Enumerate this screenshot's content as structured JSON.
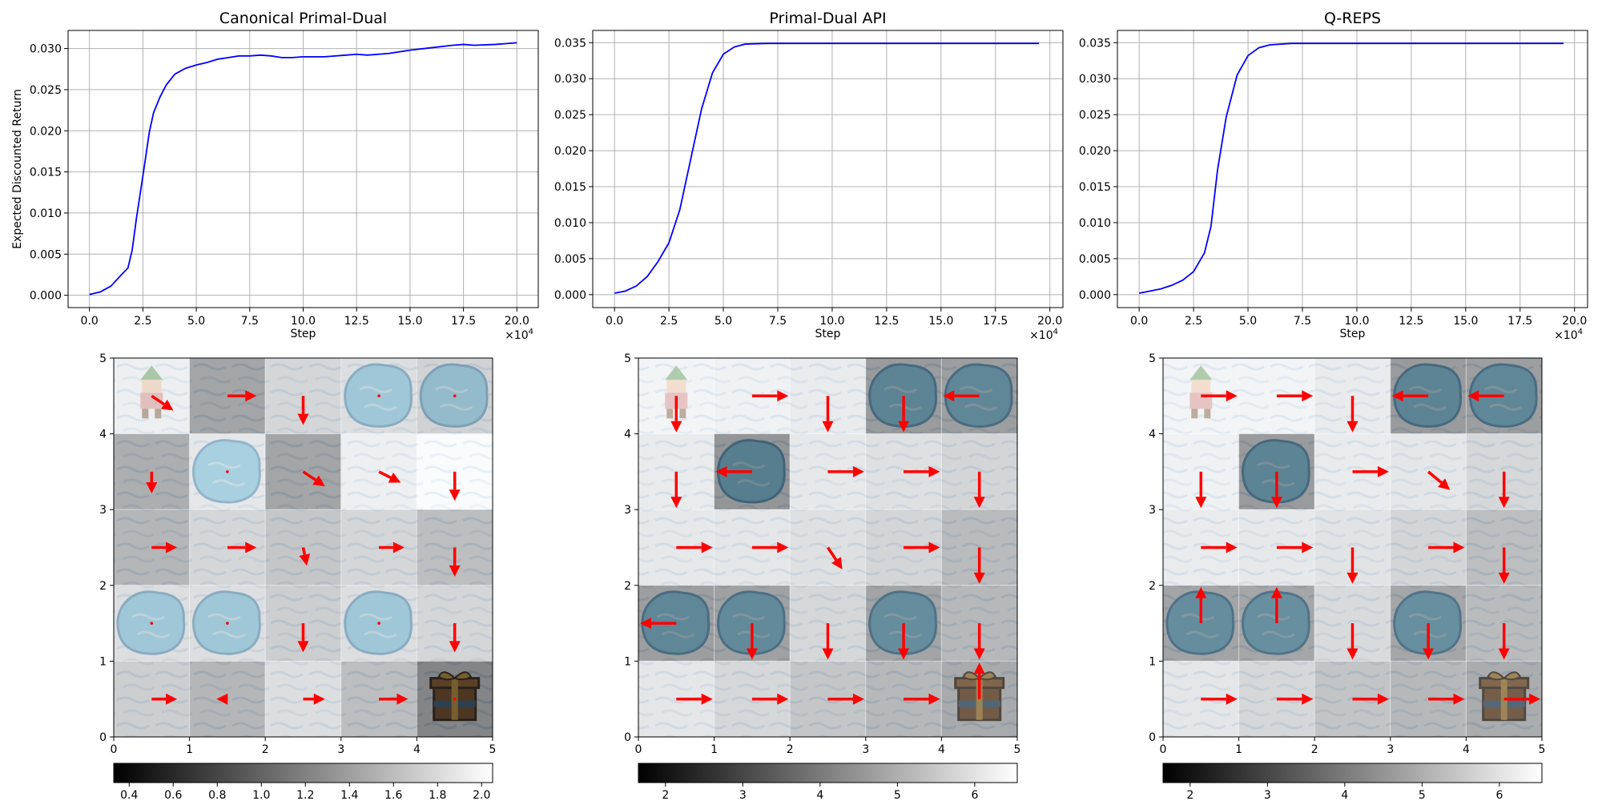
{
  "chart_data": [
    {
      "type": "line",
      "title": "Canonical Primal-Dual",
      "xlabel": "Step",
      "ylabel": "Expected Discounted Return",
      "x_multiplier": "×10",
      "x_multiplier_exp": "4",
      "xlim": [
        -1.0,
        21.0
      ],
      "ylim": [
        -0.0015,
        0.0322
      ],
      "xticks": [
        0.0,
        2.5,
        5.0,
        7.5,
        10.0,
        12.5,
        15.0,
        17.5,
        20.0
      ],
      "xtick_labels": [
        "0.0",
        "2.5",
        "5.0",
        "7.5",
        "10.0",
        "12.5",
        "15.0",
        "17.5",
        "20.0"
      ],
      "yticks": [
        0.0,
        0.005,
        0.01,
        0.015,
        0.02,
        0.025,
        0.03
      ],
      "ytick_labels": [
        "0.000",
        "0.005",
        "0.010",
        "0.015",
        "0.020",
        "0.025",
        "0.030"
      ],
      "grid": true,
      "color": "#0000ff",
      "x": [
        0,
        0.5,
        1.0,
        1.5,
        1.8,
        2.0,
        2.2,
        2.5,
        2.8,
        3.0,
        3.3,
        3.6,
        4.0,
        4.5,
        5.0,
        5.5,
        6.0,
        6.5,
        7.0,
        7.5,
        8.0,
        8.5,
        9.0,
        9.5,
        10.0,
        11.0,
        12.0,
        12.5,
        13.0,
        14.0,
        15.0,
        16.0,
        17.0,
        17.5,
        18.0,
        19.0,
        20.0
      ],
      "y": [
        0.0001,
        0.0004,
        0.0011,
        0.0025,
        0.0033,
        0.0055,
        0.0094,
        0.0145,
        0.0198,
        0.0222,
        0.0241,
        0.0256,
        0.0269,
        0.0276,
        0.028,
        0.0283,
        0.0287,
        0.0289,
        0.0291,
        0.0291,
        0.0292,
        0.0291,
        0.0289,
        0.0289,
        0.029,
        0.029,
        0.0292,
        0.0293,
        0.0292,
        0.0294,
        0.0298,
        0.0301,
        0.0304,
        0.0305,
        0.0304,
        0.0305,
        0.0307
      ]
    },
    {
      "type": "line",
      "title": "Primal-Dual API",
      "xlabel": "Step",
      "ylabel": "",
      "x_multiplier": "×10",
      "x_multiplier_exp": "4",
      "xlim": [
        -1.0,
        20.6
      ],
      "ylim": [
        -0.0018,
        0.0367
      ],
      "xticks": [
        0.0,
        2.5,
        5.0,
        7.5,
        10.0,
        12.5,
        15.0,
        17.5,
        20.0
      ],
      "xtick_labels": [
        "0.0",
        "2.5",
        "5.0",
        "7.5",
        "10.0",
        "12.5",
        "15.0",
        "17.5",
        "20.0"
      ],
      "yticks": [
        0.0,
        0.005,
        0.01,
        0.015,
        0.02,
        0.025,
        0.03,
        0.035
      ],
      "ytick_labels": [
        "0.000",
        "0.005",
        "0.010",
        "0.015",
        "0.020",
        "0.025",
        "0.030",
        "0.035"
      ],
      "grid": true,
      "color": "#0000ff",
      "x": [
        0,
        0.5,
        1.0,
        1.5,
        2.0,
        2.5,
        3.0,
        3.5,
        4.0,
        4.5,
        5.0,
        5.5,
        6.0,
        7.0,
        8.0,
        10.0,
        12.0,
        15.0,
        19.5
      ],
      "y": [
        0.0002,
        0.0005,
        0.0012,
        0.0025,
        0.0046,
        0.0072,
        0.0118,
        0.0188,
        0.0258,
        0.0308,
        0.0334,
        0.0344,
        0.0348,
        0.0349,
        0.0349,
        0.0349,
        0.0349,
        0.0349,
        0.0349
      ]
    },
    {
      "type": "line",
      "title": "Q-REPS",
      "xlabel": "Step",
      "ylabel": "",
      "x_multiplier": "×10",
      "x_multiplier_exp": "4",
      "xlim": [
        -1.0,
        20.6
      ],
      "ylim": [
        -0.0018,
        0.0367
      ],
      "xticks": [
        0.0,
        2.5,
        5.0,
        7.5,
        10.0,
        12.5,
        15.0,
        17.5,
        20.0
      ],
      "xtick_labels": [
        "0.0",
        "2.5",
        "5.0",
        "7.5",
        "10.0",
        "12.5",
        "15.0",
        "17.5",
        "20.0"
      ],
      "yticks": [
        0.0,
        0.005,
        0.01,
        0.015,
        0.02,
        0.025,
        0.03,
        0.035
      ],
      "ytick_labels": [
        "0.000",
        "0.005",
        "0.010",
        "0.015",
        "0.020",
        "0.025",
        "0.030",
        "0.035"
      ],
      "grid": true,
      "color": "#0000ff",
      "x": [
        0,
        0.5,
        1.0,
        1.5,
        2.0,
        2.5,
        3.0,
        3.3,
        3.6,
        4.0,
        4.5,
        5.0,
        5.5,
        6.0,
        7.0,
        8.0,
        10.0,
        12.0,
        15.0,
        19.5
      ],
      "y": [
        0.0002,
        0.0005,
        0.0008,
        0.0013,
        0.002,
        0.0032,
        0.0058,
        0.0095,
        0.0173,
        0.0247,
        0.0305,
        0.0332,
        0.0343,
        0.0347,
        0.0349,
        0.0349,
        0.0349,
        0.0349,
        0.0349,
        0.0349
      ]
    },
    {
      "type": "heatmap",
      "title": "",
      "grid_size": 5,
      "xlim": [
        0,
        5
      ],
      "ylim": [
        0,
        5
      ],
      "ticks": [
        "0",
        "1",
        "2",
        "3",
        "4",
        "5"
      ],
      "colorscale": "gray",
      "colorbar_range": [
        0.33,
        2.05
      ],
      "colorbar_ticks": [
        0.4,
        0.6,
        0.8,
        1.0,
        1.2,
        1.4,
        1.6,
        1.8,
        2.0
      ],
      "colorbar_tick_labels": [
        "0.4",
        "0.6",
        "0.8",
        "1.0",
        "1.2",
        "1.4",
        "1.6",
        "1.8",
        "2.0"
      ],
      "values": [
        [
          1.9,
          1.0,
          1.6,
          1.7,
          1.55
        ],
        [
          1.1,
          1.8,
          1.0,
          1.9,
          2.05
        ],
        [
          1.2,
          1.6,
          1.4,
          1.6,
          1.3
        ],
        [
          1.7,
          1.7,
          1.5,
          1.7,
          1.6
        ],
        [
          1.5,
          1.2,
          1.7,
          1.3,
          0.6
        ]
      ],
      "cell_types": [
        [
          "start",
          "ice",
          "ice",
          "hole",
          "hole"
        ],
        [
          "ice",
          "hole",
          "ice",
          "ice",
          "ice"
        ],
        [
          "ice",
          "ice",
          "ice",
          "ice",
          "ice"
        ],
        [
          "hole",
          "hole",
          "ice",
          "hole",
          "ice"
        ],
        [
          "ice",
          "ice",
          "ice",
          "ice",
          "goal"
        ]
      ],
      "arrows": [
        [
          [
            0.6,
            -0.4
          ],
          [
            0.8,
            0
          ],
          [
            0,
            -0.8
          ],
          [
            0,
            0
          ],
          [
            0,
            0
          ]
        ],
        [
          [
            0,
            -0.6
          ],
          [
            0,
            0
          ],
          [
            0.6,
            -0.4
          ],
          [
            0.6,
            -0.3
          ],
          [
            0,
            -0.8
          ]
        ],
        [
          [
            0.7,
            0
          ],
          [
            0.8,
            0
          ],
          [
            0.1,
            -0.5
          ],
          [
            0.7,
            0
          ],
          [
            0,
            -0.8
          ]
        ],
        [
          [
            0,
            0
          ],
          [
            0,
            0
          ],
          [
            0,
            -0.8
          ],
          [
            0,
            0
          ],
          [
            0,
            -0.8
          ]
        ],
        [
          [
            0.7,
            0
          ],
          [
            -0.3,
            0
          ],
          [
            0.6,
            0
          ],
          [
            0.8,
            0
          ],
          [
            0,
            0
          ]
        ]
      ]
    },
    {
      "type": "heatmap",
      "title": "",
      "grid_size": 5,
      "xlim": [
        0,
        5
      ],
      "ylim": [
        0,
        5
      ],
      "ticks": [
        "0",
        "1",
        "2",
        "3",
        "4",
        "5"
      ],
      "colorscale": "gray",
      "colorbar_range": [
        1.65,
        6.55
      ],
      "colorbar_ticks": [
        2,
        3,
        4,
        5,
        6
      ],
      "colorbar_tick_labels": [
        "2",
        "3",
        "4",
        "5",
        "6"
      ],
      "values": [
        [
          6.3,
          6.2,
          6.0,
          3.2,
          3.3
        ],
        [
          6.0,
          3.0,
          5.9,
          5.6,
          5.2
        ],
        [
          5.9,
          5.8,
          5.6,
          5.2,
          4.3
        ],
        [
          3.3,
          3.4,
          5.3,
          3.5,
          4.2
        ],
        [
          5.8,
          5.3,
          4.7,
          4.2,
          3.7
        ]
      ],
      "cell_types": [
        [
          "start",
          "ice",
          "ice",
          "hole",
          "hole"
        ],
        [
          "ice",
          "hole",
          "ice",
          "ice",
          "ice"
        ],
        [
          "ice",
          "ice",
          "ice",
          "ice",
          "ice"
        ],
        [
          "hole",
          "hole",
          "ice",
          "hole",
          "ice"
        ],
        [
          "ice",
          "ice",
          "ice",
          "ice",
          "goal"
        ]
      ],
      "arrows": [
        [
          [
            0,
            -1.0
          ],
          [
            1.0,
            0
          ],
          [
            0,
            -1.0
          ],
          [
            0,
            -1.0
          ],
          [
            -1.0,
            0
          ]
        ],
        [
          [
            0,
            -1.0
          ],
          [
            -1.0,
            0
          ],
          [
            1.0,
            0
          ],
          [
            1.0,
            0
          ],
          [
            0,
            -1.0
          ]
        ],
        [
          [
            1.0,
            0
          ],
          [
            1.0,
            0
          ],
          [
            0.4,
            -0.6
          ],
          [
            1.0,
            0
          ],
          [
            0,
            -1.0
          ]
        ],
        [
          [
            -1.0,
            0
          ],
          [
            0,
            -1.0
          ],
          [
            0,
            -1.0
          ],
          [
            0,
            -1.0
          ],
          [
            0,
            -1.0
          ]
        ],
        [
          [
            1.0,
            0
          ],
          [
            1.0,
            0
          ],
          [
            1.0,
            0
          ],
          [
            1.0,
            0
          ],
          [
            0,
            1.0
          ]
        ]
      ]
    },
    {
      "type": "heatmap",
      "title": "",
      "grid_size": 5,
      "xlim": [
        0,
        5
      ],
      "ylim": [
        0,
        5
      ],
      "ticks": [
        "0",
        "1",
        "2",
        "3",
        "4",
        "5"
      ],
      "colorscale": "gray",
      "colorbar_range": [
        1.65,
        6.55
      ],
      "colorbar_ticks": [
        2,
        3,
        4,
        5,
        6
      ],
      "colorbar_tick_labels": [
        "2",
        "3",
        "4",
        "5",
        "6"
      ],
      "values": [
        [
          6.3,
          6.3,
          6.0,
          3.2,
          3.3
        ],
        [
          6.2,
          3.2,
          6.0,
          5.8,
          5.3
        ],
        [
          6.0,
          5.9,
          5.7,
          5.2,
          4.4
        ],
        [
          3.5,
          3.6,
          5.4,
          3.6,
          4.3
        ],
        [
          5.8,
          5.3,
          4.6,
          4.2,
          3.8
        ]
      ],
      "cell_types": [
        [
          "start",
          "ice",
          "ice",
          "hole",
          "hole"
        ],
        [
          "ice",
          "hole",
          "ice",
          "ice",
          "ice"
        ],
        [
          "ice",
          "ice",
          "ice",
          "ice",
          "ice"
        ],
        [
          "hole",
          "hole",
          "ice",
          "hole",
          "ice"
        ],
        [
          "ice",
          "ice",
          "ice",
          "ice",
          "goal"
        ]
      ],
      "arrows": [
        [
          [
            1.0,
            0
          ],
          [
            1.0,
            0
          ],
          [
            0,
            -1.0
          ],
          [
            -1.0,
            0
          ],
          [
            -1.0,
            0
          ]
        ],
        [
          [
            0,
            -1.0
          ],
          [
            0,
            -1.0
          ],
          [
            1.0,
            0
          ],
          [
            0.6,
            -0.5
          ],
          [
            0,
            -1.0
          ]
        ],
        [
          [
            1.0,
            0
          ],
          [
            1.0,
            0
          ],
          [
            0,
            -1.0
          ],
          [
            1.0,
            0
          ],
          [
            0,
            -1.0
          ]
        ],
        [
          [
            0,
            1.0
          ],
          [
            0,
            1.0
          ],
          [
            0,
            -1.0
          ],
          [
            0,
            -1.0
          ],
          [
            0,
            -1.0
          ]
        ],
        [
          [
            1.0,
            0
          ],
          [
            1.0,
            0
          ],
          [
            1.0,
            0
          ],
          [
            1.0,
            0
          ],
          [
            1.0,
            0
          ]
        ]
      ]
    }
  ]
}
